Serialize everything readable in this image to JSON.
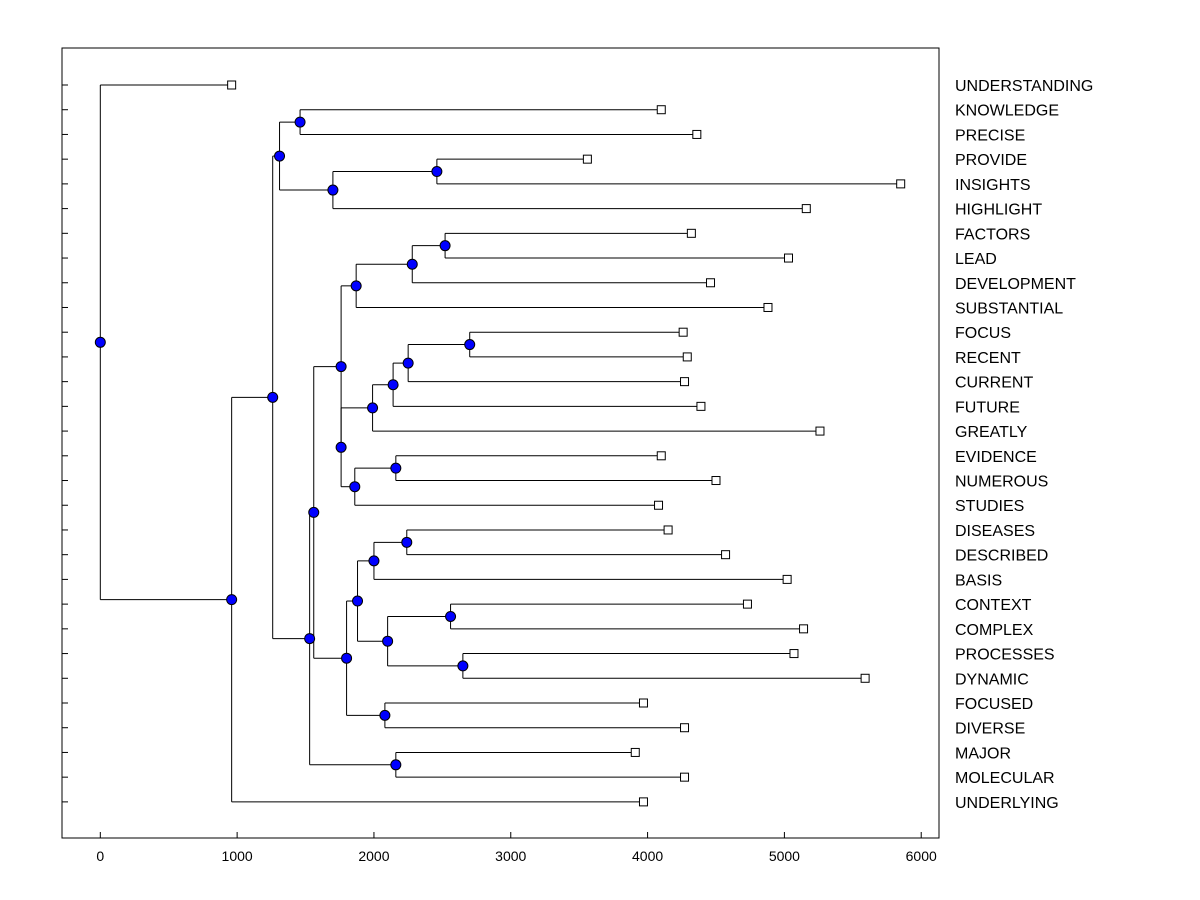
{
  "chart_data": {
    "type": "dendrogram",
    "title": "",
    "xlabel": "",
    "ylabel": "",
    "xlim": [
      -280,
      6130
    ],
    "x_ticks": [
      0,
      1000,
      2000,
      3000,
      4000,
      5000,
      6000
    ],
    "x_tick_labels": [
      "0",
      "1000",
      "2000",
      "3000",
      "4000",
      "5000",
      "6000"
    ],
    "colors": {
      "node_fill": "#0000ff",
      "line": "#000000",
      "leaf_fill": "#ffffff"
    },
    "leaves": [
      {
        "label": "UNDERSTANDING",
        "value": 960
      },
      {
        "label": "KNOWLEDGE",
        "value": 4100
      },
      {
        "label": "PRECISE",
        "value": 4360
      },
      {
        "label": "PROVIDE",
        "value": 3560
      },
      {
        "label": "INSIGHTS",
        "value": 5850
      },
      {
        "label": "HIGHLIGHT",
        "value": 5160
      },
      {
        "label": "FACTORS",
        "value": 4320
      },
      {
        "label": "LEAD",
        "value": 5030
      },
      {
        "label": "DEVELOPMENT",
        "value": 4460
      },
      {
        "label": "SUBSTANTIAL",
        "value": 4880
      },
      {
        "label": "FOCUS",
        "value": 4260
      },
      {
        "label": "RECENT",
        "value": 4290
      },
      {
        "label": "CURRENT",
        "value": 4270
      },
      {
        "label": "FUTURE",
        "value": 4390
      },
      {
        "label": "GREATLY",
        "value": 5260
      },
      {
        "label": "EVIDENCE",
        "value": 4100
      },
      {
        "label": "NUMEROUS",
        "value": 4500
      },
      {
        "label": "STUDIES",
        "value": 4080
      },
      {
        "label": "DISEASES",
        "value": 4150
      },
      {
        "label": "DESCRIBED",
        "value": 4570
      },
      {
        "label": "BASIS",
        "value": 5020
      },
      {
        "label": "CONTEXT",
        "value": 4730
      },
      {
        "label": "COMPLEX",
        "value": 5140
      },
      {
        "label": "PROCESSES",
        "value": 5070
      },
      {
        "label": "DYNAMIC",
        "value": 5590
      },
      {
        "label": "FOCUSED",
        "value": 3970
      },
      {
        "label": "DIVERSE",
        "value": 4270
      },
      {
        "label": "MAJOR",
        "value": 3910
      },
      {
        "label": "MOLECULAR",
        "value": 4270
      },
      {
        "label": "UNDERLYING",
        "value": 3970
      }
    ],
    "merges": [
      {
        "id": "n1",
        "value": 1460,
        "children": [
          "KNOWLEDGE",
          "PRECISE"
        ]
      },
      {
        "id": "n2",
        "value": 2460,
        "children": [
          "PROVIDE",
          "INSIGHTS"
        ]
      },
      {
        "id": "n3",
        "value": 1700,
        "children": [
          "n2",
          "HIGHLIGHT"
        ]
      },
      {
        "id": "n4",
        "value": 1310,
        "children": [
          "n1",
          "n3"
        ]
      },
      {
        "id": "n5",
        "value": 2520,
        "children": [
          "FACTORS",
          "LEAD"
        ]
      },
      {
        "id": "n6",
        "value": 2280,
        "children": [
          "n5",
          "DEVELOPMENT"
        ]
      },
      {
        "id": "n7",
        "value": 1870,
        "children": [
          "n6",
          "SUBSTANTIAL"
        ]
      },
      {
        "id": "n8",
        "value": 2700,
        "children": [
          "FOCUS",
          "RECENT"
        ]
      },
      {
        "id": "n9",
        "value": 2250,
        "children": [
          "n8",
          "CURRENT"
        ]
      },
      {
        "id": "n10",
        "value": 2140,
        "children": [
          "n9",
          "FUTURE"
        ]
      },
      {
        "id": "n11",
        "value": 1990,
        "children": [
          "n10",
          "GREATLY"
        ]
      },
      {
        "id": "n12",
        "value": 2160,
        "children": [
          "EVIDENCE",
          "NUMEROUS"
        ]
      },
      {
        "id": "n13",
        "value": 1860,
        "children": [
          "n12",
          "STUDIES"
        ]
      },
      {
        "id": "n14",
        "value": 1760,
        "children": [
          "n11",
          "n13"
        ]
      },
      {
        "id": "n15",
        "value": 1760,
        "children": [
          "n7",
          "n14"
        ]
      },
      {
        "id": "n16",
        "value": 2240,
        "children": [
          "DISEASES",
          "DESCRIBED"
        ]
      },
      {
        "id": "n17",
        "value": 2000,
        "children": [
          "n16",
          "BASIS"
        ]
      },
      {
        "id": "n18",
        "value": 2560,
        "children": [
          "CONTEXT",
          "COMPLEX"
        ]
      },
      {
        "id": "n19",
        "value": 2650,
        "children": [
          "PROCESSES",
          "DYNAMIC"
        ]
      },
      {
        "id": "n20",
        "value": 2100,
        "children": [
          "n18",
          "n19"
        ]
      },
      {
        "id": "n21",
        "value": 1880,
        "children": [
          "n17",
          "n20"
        ]
      },
      {
        "id": "n22",
        "value": 2080,
        "children": [
          "FOCUSED",
          "DIVERSE"
        ]
      },
      {
        "id": "n23",
        "value": 1800,
        "children": [
          "n21",
          "n22"
        ]
      },
      {
        "id": "n24",
        "value": 1560,
        "children": [
          "n15",
          "n23"
        ]
      },
      {
        "id": "n25",
        "value": 2160,
        "children": [
          "MAJOR",
          "MOLECULAR"
        ]
      },
      {
        "id": "n26",
        "value": 1530,
        "children": [
          "n24",
          "n25"
        ]
      },
      {
        "id": "n27",
        "value": 1260,
        "children": [
          "n4",
          "n26"
        ]
      },
      {
        "id": "n28",
        "value": 960,
        "children": [
          "n27",
          "UNDERLYING"
        ]
      },
      {
        "id": "n29",
        "value": 0,
        "children": [
          "UNDERSTANDING",
          "n28"
        ]
      }
    ]
  }
}
